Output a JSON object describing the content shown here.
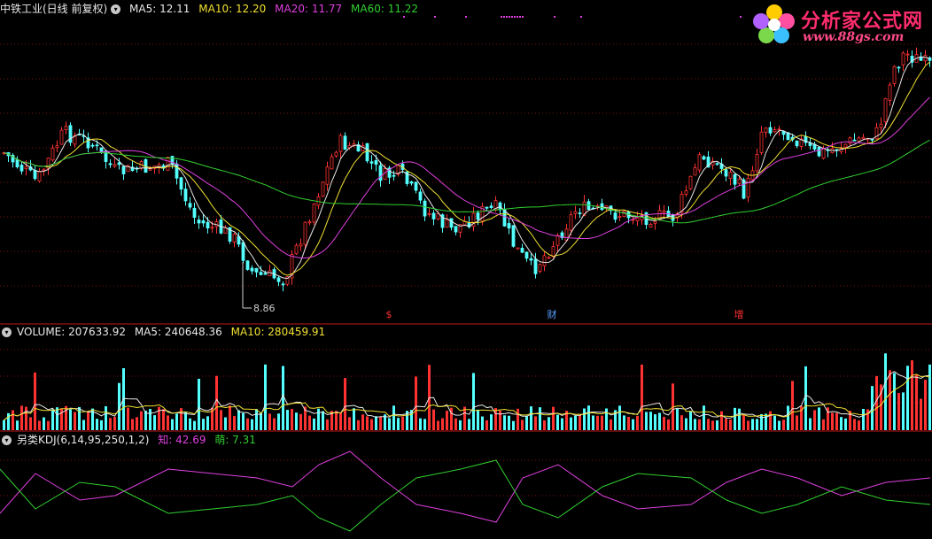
{
  "main_panel": {
    "stock_title": "中铁工业(日线 前复权)",
    "ma": [
      {
        "label": "MA5: 12.11",
        "color": "#e8e8e8"
      },
      {
        "label": "MA10: 12.20",
        "color": "#f0e030"
      },
      {
        "label": "MA20: 11.77",
        "color": "#e040e0"
      },
      {
        "label": "MA60: 11.22",
        "color": "#30d030"
      }
    ],
    "low_marker": "8.86",
    "events": [
      {
        "label": "$",
        "color": "#ff3030"
      },
      {
        "label": "财",
        "color": "#5aa0ff"
      },
      {
        "label": "增",
        "color": "#ff3030"
      }
    ]
  },
  "watermark": {
    "title": "分析家公式网",
    "url": "www.88gs.com"
  },
  "volume_panel": {
    "label": "VOLUME: 207633.92",
    "ma5": "MA5: 240648.36",
    "ma10": "MA10: 280459.91"
  },
  "kdj_panel": {
    "label": "另类KDJ(6,14,95,250,1,2)",
    "zhi": "知: 42.69",
    "meng": "萌: 7.31"
  },
  "colors": {
    "up": "#ff3232",
    "down": "#54ffff",
    "ma5": "#e8e8e8",
    "ma10": "#f0e030",
    "ma20": "#e040e0",
    "ma60": "#30d030",
    "grid": "#7a1010",
    "separator": "#c01818"
  }
}
